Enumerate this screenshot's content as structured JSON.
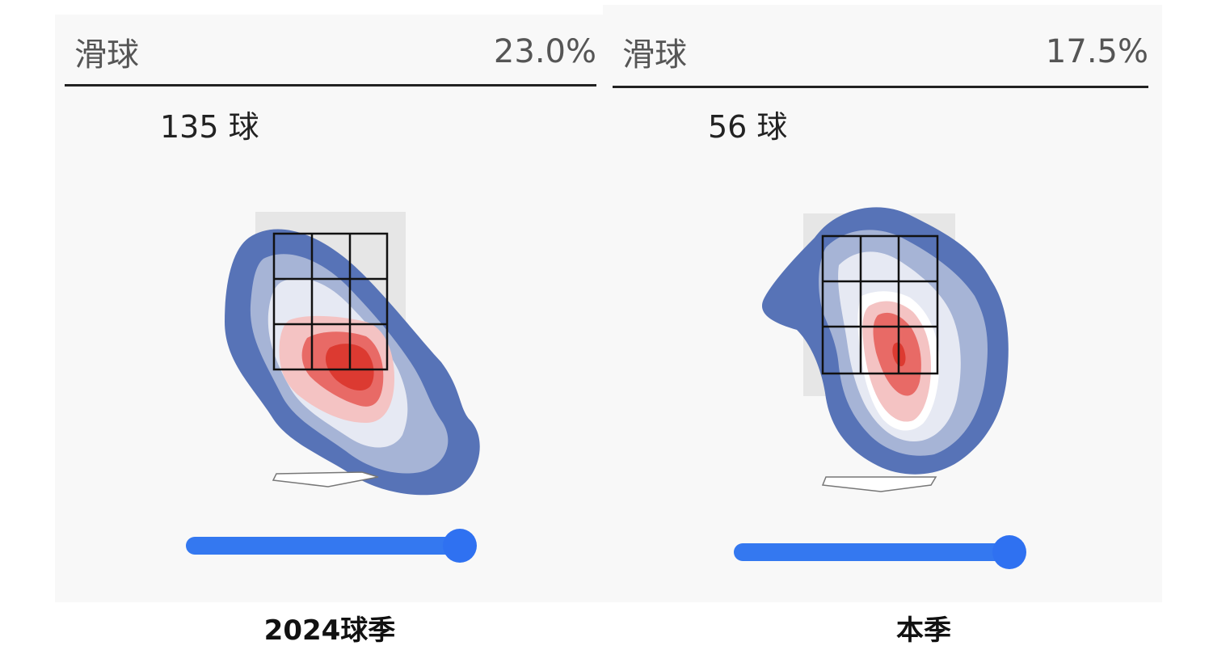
{
  "panels": [
    {
      "pitch_type": "滑球",
      "percentage": "23.0%",
      "count_label": "135 球",
      "caption": "2024球季",
      "slider_value": 1.0
    },
    {
      "pitch_type": "滑球",
      "percentage": "17.5%",
      "count_label": "56 球",
      "caption": "本季",
      "slider_value": 1.0
    }
  ],
  "colors": {
    "density_levels": [
      "#5773b7",
      "#a6b4d6",
      "#e6e9f3",
      "#f4c3c3",
      "#e86a66",
      "#dc3a31"
    ],
    "slider": "#3478f0",
    "strike_zone_backdrop": "#e6e6e6"
  },
  "icons": {
    "home_plate": "home-plate-icon",
    "strike_zone": "strike-zone-grid"
  }
}
